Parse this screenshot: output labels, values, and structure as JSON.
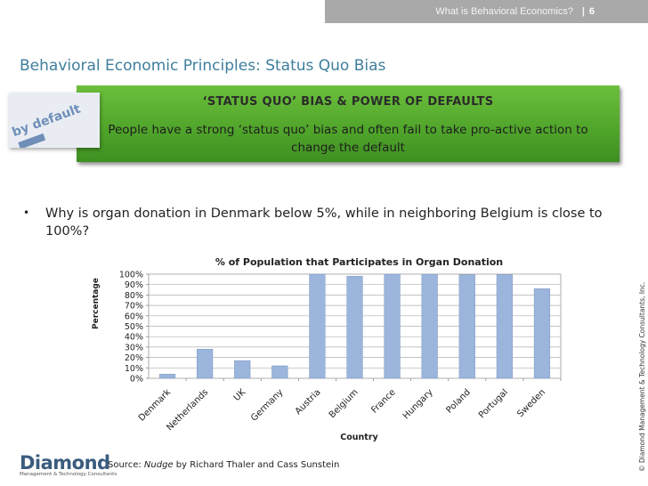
{
  "header": {
    "section": "What is Behavioral Economics?",
    "separator": "|",
    "page_number": "6"
  },
  "slide_title": "Behavioral Economic Principles: Status Quo Bias",
  "image": {
    "text": "by default"
  },
  "callout": {
    "heading": "‘STATUS QUO’ BIAS & POWER OF DEFAULTS",
    "body": "People have a strong ‘status quo’ bias and often fail to take pro-active action to change the default"
  },
  "bullet": {
    "marker": "•",
    "text": "Why is organ donation in Denmark below 5%, while in neighboring Belgium is close to 100%?"
  },
  "chart_data": {
    "type": "bar",
    "title": "% of Population that Participates in Organ Donation",
    "xlabel": "Country",
    "ylabel": "Percentage",
    "categories": [
      "Denmark",
      "Netherlands",
      "UK",
      "Germany",
      "Austria",
      "Belgium",
      "France",
      "Hungary",
      "Poland",
      "Portugal",
      "Sweden"
    ],
    "values": [
      4,
      28,
      17,
      12,
      99.98,
      98,
      99.91,
      99.97,
      99.5,
      99.64,
      86
    ],
    "ylim": [
      0,
      100
    ],
    "yticks": [
      "0%",
      "10%",
      "20%",
      "30%",
      "40%",
      "50%",
      "60%",
      "70%",
      "80%",
      "90%",
      "100%"
    ],
    "grid": true,
    "bar_color": "#9bb5dc"
  },
  "footer": {
    "logo_name": "Diamond",
    "logo_subtitle": "Management & Technology Consultants",
    "source_prefix": "Source:",
    "source_title": "Nudge",
    "source_suffix": "by Richard Thaler and Cass Sunstein",
    "copyright": "© Diamond Management & Technology Consultants, Inc."
  }
}
